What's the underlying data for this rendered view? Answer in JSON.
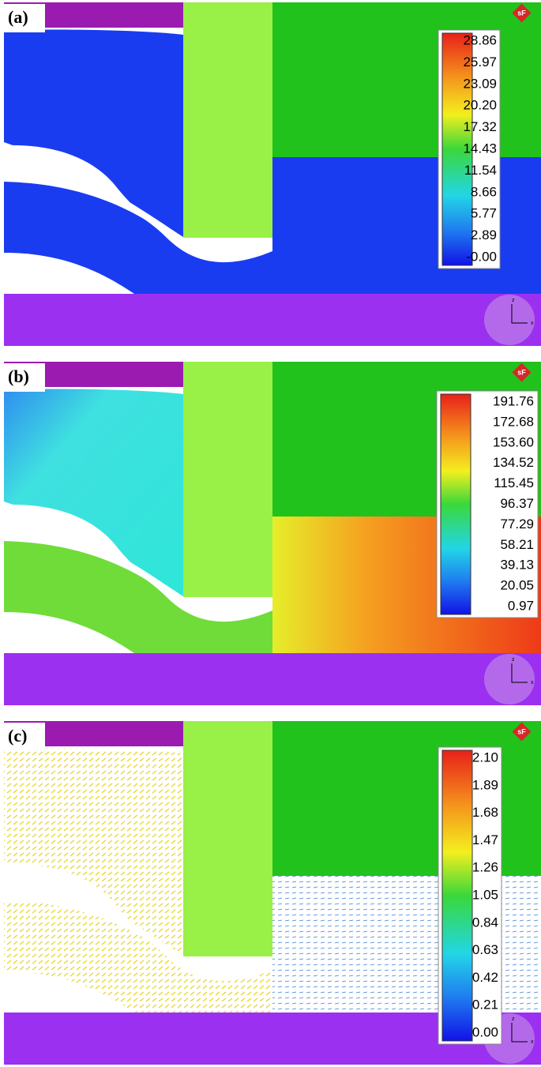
{
  "panels": [
    {
      "label": "(a)",
      "logo": "sF",
      "triad": [
        "z",
        "x"
      ],
      "legend": [
        "28.86",
        "25.97",
        "23.09",
        "20.20",
        "17.32",
        "14.43",
        "11.54",
        "8.66",
        "5.77",
        "2.89",
        "-0.00"
      ]
    },
    {
      "label": "(b)",
      "logo": "sF",
      "triad": [
        "z",
        "x"
      ],
      "legend": [
        "191.76",
        "172.68",
        "153.60",
        "134.52",
        "115.45",
        "96.37",
        "77.29",
        "58.21",
        "39.13",
        "20.05",
        "0.97"
      ]
    },
    {
      "label": "(c)",
      "logo": "sF",
      "triad": [
        "z",
        "x"
      ],
      "legend": [
        "2.10",
        "1.89",
        "1.68",
        "1.47",
        "1.26",
        "1.05",
        "0.84",
        "0.63",
        "0.42",
        "0.21",
        "0.00"
      ]
    }
  ]
}
